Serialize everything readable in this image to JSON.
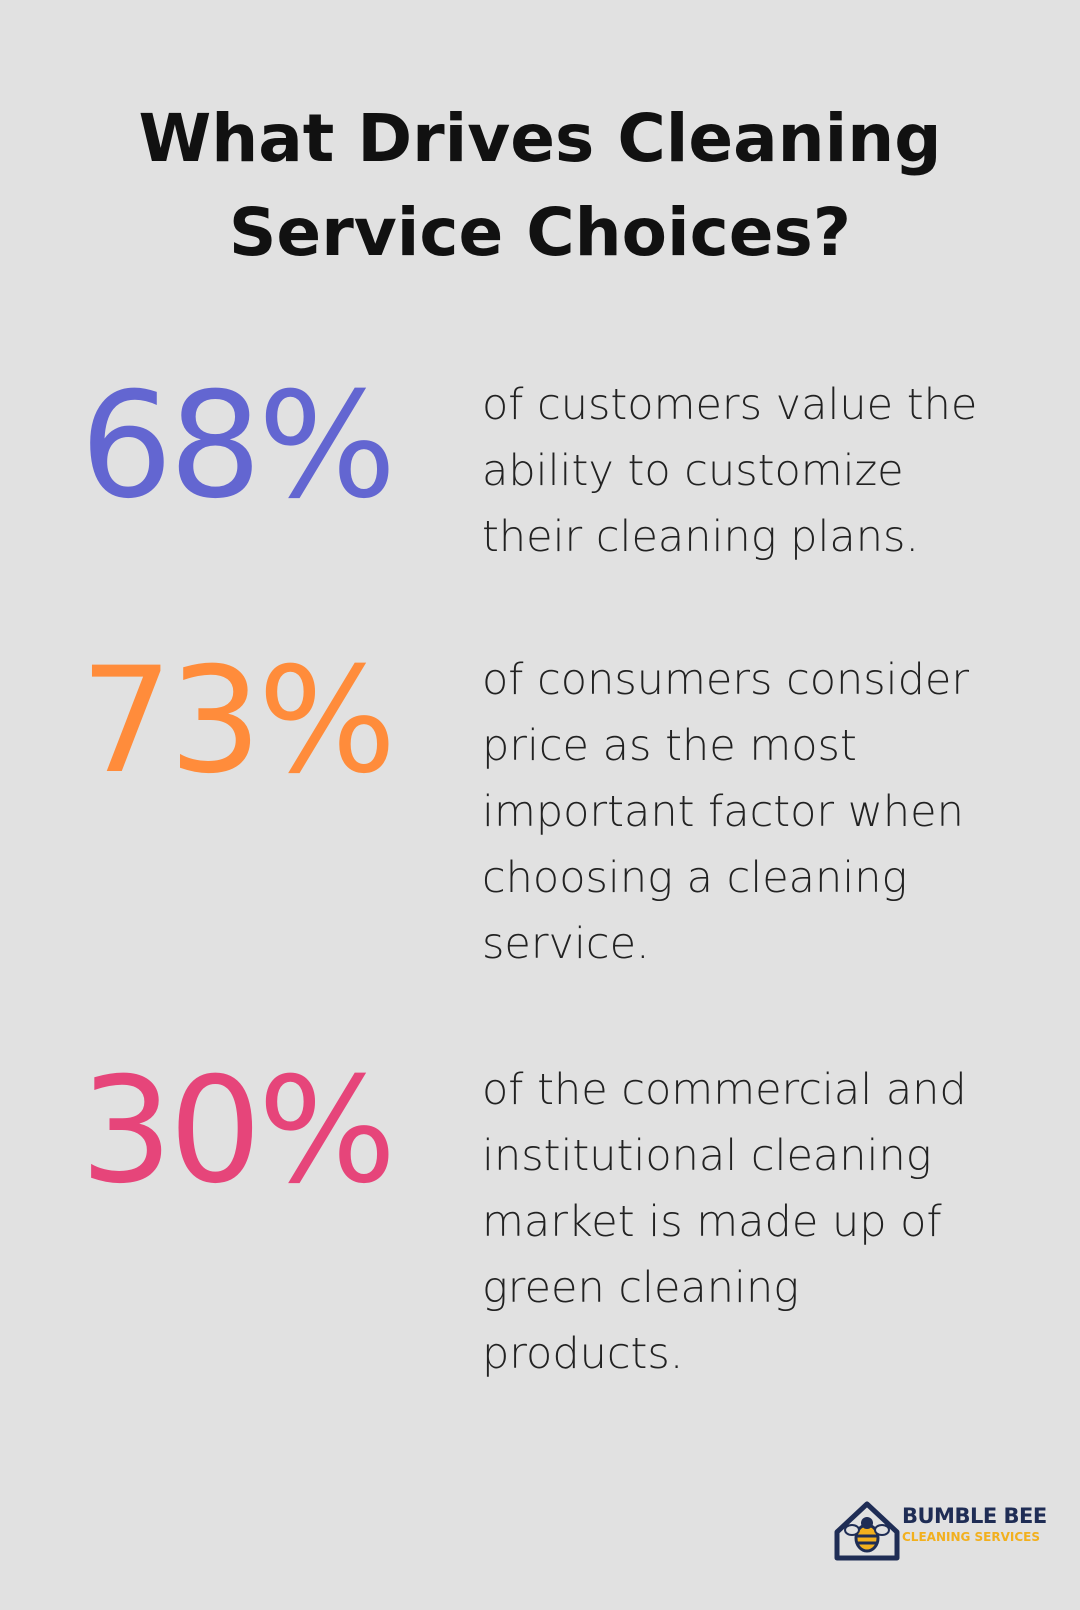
{
  "title": "What Drives Cleaning Service Choices?",
  "stats": [
    {
      "value": "68%",
      "color": "#6366d1",
      "text": "of customers value the ability to customize their cleaning plans."
    },
    {
      "value": "73%",
      "color": "#ff8c3b",
      "text": "of consumers consider price as the most important factor when choosing a cleaning service."
    },
    {
      "value": "30%",
      "color": "#e6457a",
      "text": "of the commercial and institutional cleaning market is made up of green cleaning products."
    }
  ],
  "logo": {
    "name": "BUMBLE BEE",
    "tagline": "CLEANING SERVICES"
  }
}
